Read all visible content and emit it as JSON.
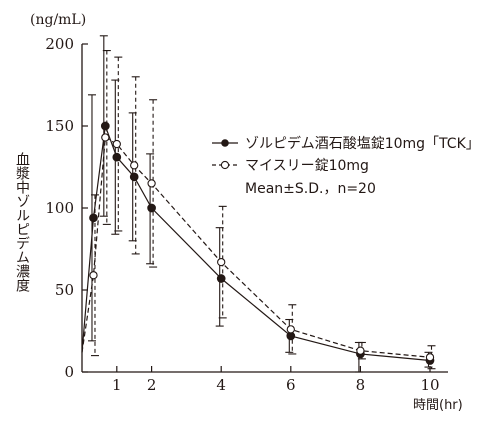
{
  "chart_data": {
    "type": "line",
    "y_unit_label": "(ng/mL)",
    "ylabel": "血漿中ゾルピデム濃度",
    "xlabel": "時間(hr)",
    "ylim": [
      0,
      200
    ],
    "xlim": [
      0,
      10
    ],
    "y_ticks": [
      0,
      50,
      100,
      150,
      200
    ],
    "x_ticks": [
      1,
      2,
      4,
      6,
      8,
      10
    ],
    "grid": false,
    "legend_placement": "top-right",
    "legend_note": "Mean±S.D.，n=20",
    "series": [
      {
        "name": "ゾルピデム酒石酸塩錠10mg「TCK」",
        "marker": "filled-circle",
        "line": "solid",
        "x": [
          0,
          0.33,
          0.67,
          1,
          1.5,
          2,
          4,
          6,
          8,
          10
        ],
        "y": [
          12,
          94,
          150,
          131,
          119,
          100,
          57,
          22,
          11,
          7
        ],
        "sd_upper": [
          12,
          169,
          205,
          178,
          158,
          133,
          88,
          32,
          18,
          12
        ],
        "sd_lower": [
          12,
          19,
          95,
          84,
          80,
          66,
          28,
          12,
          0,
          3
        ]
      },
      {
        "name": "マイスリー錠10mg",
        "marker": "open-circle",
        "line": "dashed",
        "x": [
          0,
          0.33,
          0.67,
          1,
          1.5,
          2,
          4,
          6,
          8,
          10
        ],
        "y": [
          12,
          59,
          143,
          139,
          126,
          115,
          67,
          26,
          13,
          9
        ],
        "sd_upper": [
          12,
          108,
          196,
          192,
          180,
          166,
          101,
          41,
          18,
          16
        ],
        "sd_lower": [
          12,
          10,
          90,
          86,
          72,
          64,
          33,
          11,
          8,
          2
        ]
      }
    ]
  }
}
